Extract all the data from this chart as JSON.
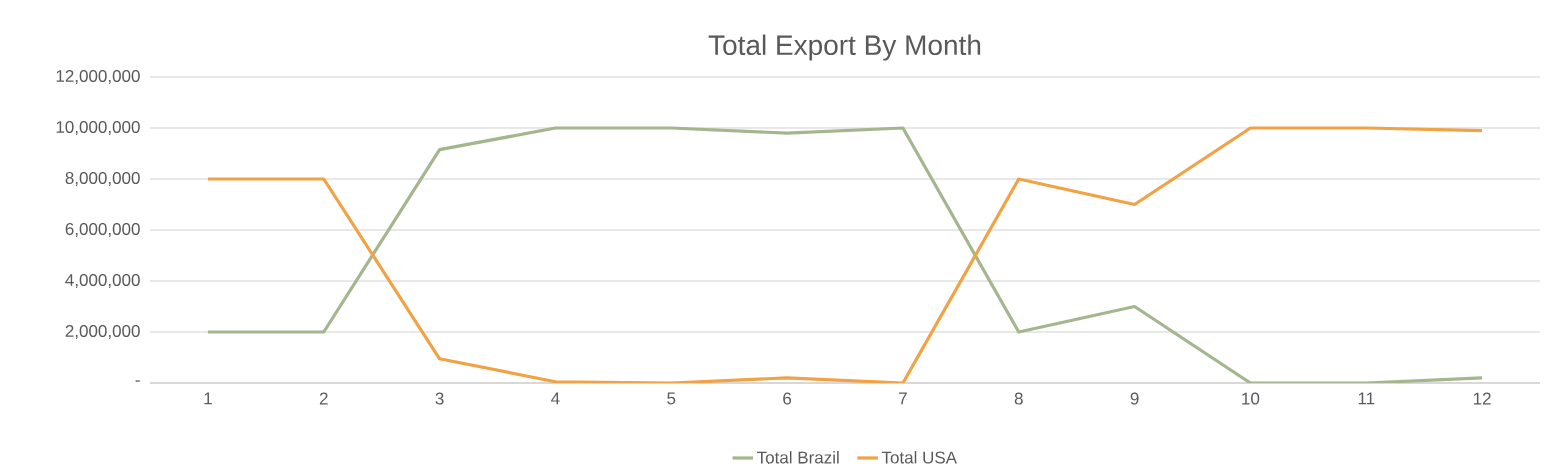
{
  "chart_data": {
    "type": "line",
    "title": "Total Export By Month",
    "categories": [
      "1",
      "2",
      "3",
      "4",
      "5",
      "6",
      "7",
      "8",
      "9",
      "10",
      "11",
      "12"
    ],
    "series": [
      {
        "name": "Total Brazil",
        "color": "#a3b68d",
        "values": [
          2000000,
          2000000,
          9150000,
          10000000,
          10000000,
          9800000,
          10000000,
          2000000,
          3000000,
          0,
          0,
          200000
        ]
      },
      {
        "name": "Total USA",
        "color": "#f1a244",
        "values": [
          8000000,
          8000000,
          950000,
          50000,
          0,
          200000,
          0,
          8000000,
          7000000,
          10000000,
          10000000,
          9900000
        ]
      }
    ],
    "ylim": [
      0,
      12000000
    ],
    "yticks": [
      {
        "value": 0,
        "label": "-"
      },
      {
        "value": 2000000,
        "label": "2,000,000"
      },
      {
        "value": 4000000,
        "label": "4,000,000"
      },
      {
        "value": 6000000,
        "label": "6,000,000"
      },
      {
        "value": 8000000,
        "label": "8,000,000"
      },
      {
        "value": 10000000,
        "label": "10,000,000"
      },
      {
        "value": 12000000,
        "label": "12,000,000"
      }
    ],
    "grid": "y",
    "legend": "bottom",
    "marker": "none",
    "line_style": "solid"
  }
}
